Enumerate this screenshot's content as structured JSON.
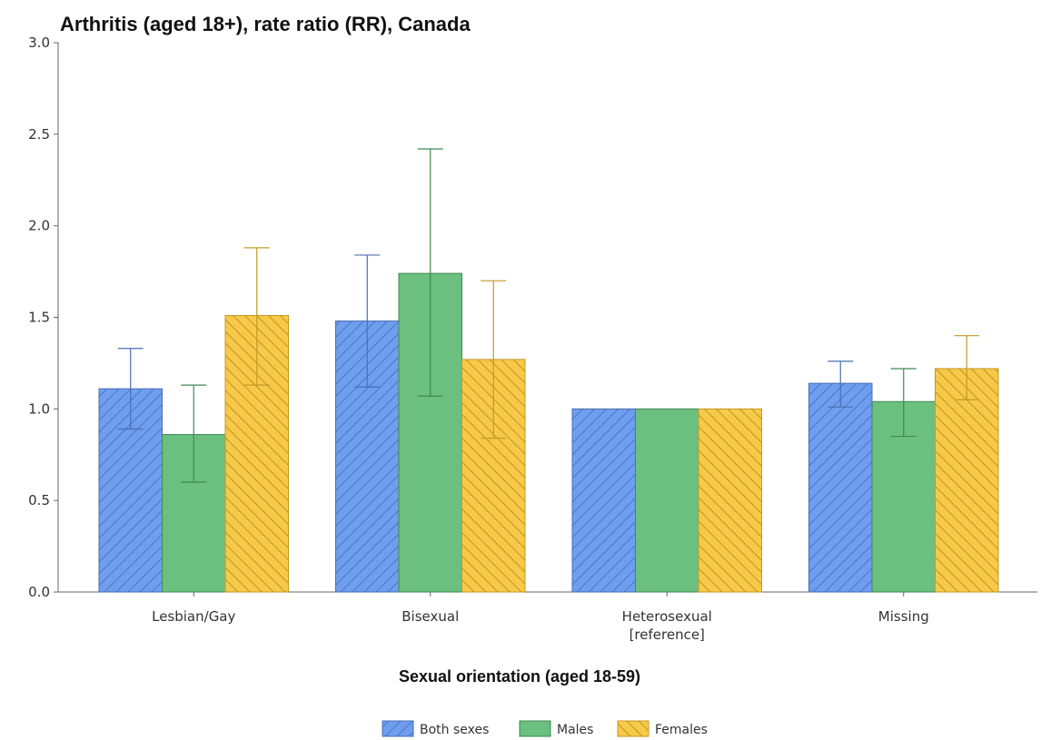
{
  "chart_data": {
    "type": "bar",
    "title": "Arthritis (aged 18+), rate ratio (RR), Canada",
    "xlabel": "Sexual orientation (aged 18-59)",
    "ylabel": "",
    "ylim": [
      0,
      3.0
    ],
    "yticks": [
      "0.0",
      "0.5",
      "1.0",
      "1.5",
      "2.0",
      "2.5",
      "3.0"
    ],
    "grid": false,
    "legend_position": "bottom-center",
    "categories": [
      "Lesbian/Gay",
      "Bisexual",
      "Heterosexual\n[reference]",
      "Missing"
    ],
    "series": [
      {
        "name": "Both sexes",
        "color": "#6f9eef",
        "edge": "#4a6fb0",
        "hatch": "forward",
        "values": [
          1.11,
          1.48,
          1.0,
          1.14
        ],
        "ci_low": [
          0.89,
          1.12,
          null,
          1.01
        ],
        "ci_high": [
          1.33,
          1.84,
          null,
          1.26
        ]
      },
      {
        "name": "Males",
        "color": "#6bbf7f",
        "edge": "#3e8a52",
        "hatch": "none",
        "values": [
          0.86,
          1.74,
          1.0,
          1.04
        ],
        "ci_low": [
          0.6,
          1.07,
          null,
          0.85
        ],
        "ci_high": [
          1.13,
          2.42,
          null,
          1.22
        ]
      },
      {
        "name": "Females",
        "color": "#f7c948",
        "edge": "#c49a26",
        "hatch": "backward",
        "values": [
          1.51,
          1.27,
          1.0,
          1.22
        ],
        "ci_low": [
          1.13,
          0.84,
          null,
          1.05
        ],
        "ci_high": [
          1.88,
          1.7,
          null,
          1.4
        ]
      }
    ]
  }
}
